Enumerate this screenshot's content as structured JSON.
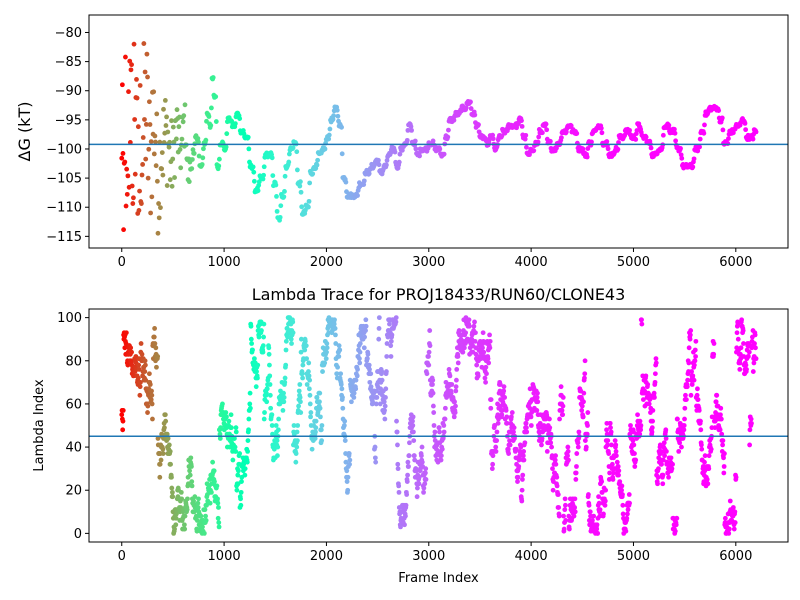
{
  "colors": {
    "hline": "#1f77b4",
    "axes": "#000000",
    "colormap": "rainbow_r"
  },
  "chart_data": [
    {
      "type": "scatter",
      "title": "",
      "xlabel": "",
      "ylabel": "ΔG (kT)",
      "xlim": [
        -320,
        6510
      ],
      "ylim": [
        -117,
        -77
      ],
      "xticks": [
        0,
        1000,
        2000,
        3000,
        4000,
        5000,
        6000
      ],
      "xtick_labels": [
        "0",
        "1000",
        "2000",
        "3000",
        "4000",
        "5000",
        "6000"
      ],
      "yticks": [
        -80,
        -85,
        -90,
        -95,
        -100,
        -105,
        -110,
        -115
      ],
      "ytick_labels": [
        "−80",
        "−85",
        "−90",
        "−95",
        "−100",
        "−105",
        "−110",
        "−115"
      ],
      "hline": -99.2,
      "color_encoding": "frame index (rainbow, early=red, late=violet)",
      "trace_points": [
        [
          0,
          -90
        ],
        [
          20,
          -100
        ],
        [
          40,
          -80
        ],
        [
          60,
          -86
        ],
        [
          90,
          -97
        ],
        [
          120,
          -104
        ],
        [
          150,
          -108
        ],
        [
          180,
          -99
        ],
        [
          220,
          -94
        ],
        [
          260,
          -101
        ],
        [
          300,
          -95
        ],
        [
          340,
          -104
        ],
        [
          380,
          -99
        ],
        [
          420,
          -98
        ],
        [
          470,
          -102
        ],
        [
          520,
          -97
        ],
        [
          560,
          -100
        ],
        [
          600,
          -96
        ],
        [
          640,
          -104
        ],
        [
          680,
          -101
        ],
        [
          720,
          -98
        ],
        [
          760,
          -103
        ],
        [
          800,
          -99
        ],
        [
          830,
          -94
        ],
        [
          860,
          -96
        ],
        [
          880,
          -88
        ],
        [
          900,
          -91
        ],
        [
          930,
          -103
        ],
        [
          960,
          -99
        ],
        [
          1000,
          -100
        ],
        [
          1030,
          -95
        ],
        [
          1080,
          -96
        ],
        [
          1120,
          -94
        ],
        [
          1160,
          -97
        ],
        [
          1200,
          -98
        ],
        [
          1250,
          -103
        ],
        [
          1300,
          -107
        ],
        [
          1350,
          -105
        ],
        [
          1400,
          -101
        ],
        [
          1440,
          -101
        ],
        [
          1480,
          -106
        ],
        [
          1520,
          -112
        ],
        [
          1560,
          -108
        ],
        [
          1600,
          -103
        ],
        [
          1640,
          -100
        ],
        [
          1680,
          -99
        ],
        [
          1720,
          -106
        ],
        [
          1760,
          -111
        ],
        [
          1800,
          -110
        ],
        [
          1840,
          -104
        ],
        [
          1880,
          -103
        ],
        [
          1920,
          -101
        ],
        [
          1960,
          -100
        ],
        [
          2000,
          -98
        ],
        [
          2040,
          -95
        ],
        [
          2080,
          -93
        ],
        [
          2120,
          -96
        ],
        [
          2160,
          -105
        ],
        [
          2200,
          -108
        ],
        [
          2260,
          -108
        ],
        [
          2320,
          -106
        ],
        [
          2380,
          -104
        ],
        [
          2440,
          -103
        ],
        [
          2480,
          -102
        ],
        [
          2520,
          -104
        ],
        [
          2560,
          -103
        ],
        [
          2600,
          -101
        ],
        [
          2640,
          -100
        ],
        [
          2680,
          -103
        ],
        [
          2720,
          -100
        ],
        [
          2760,
          -99
        ],
        [
          2800,
          -96
        ],
        [
          2840,
          -99
        ],
        [
          2880,
          -101
        ],
        [
          2920,
          -100
        ],
        [
          2960,
          -100
        ],
        [
          3000,
          -99
        ],
        [
          3060,
          -100
        ],
        [
          3120,
          -101
        ],
        [
          3160,
          -98
        ],
        [
          3200,
          -95
        ],
        [
          3260,
          -94
        ],
        [
          3320,
          -93
        ],
        [
          3380,
          -92
        ],
        [
          3420,
          -94
        ],
        [
          3460,
          -96
        ],
        [
          3500,
          -98
        ],
        [
          3560,
          -99
        ],
        [
          3600,
          -98
        ],
        [
          3640,
          -100
        ],
        [
          3680,
          -98
        ],
        [
          3720,
          -97
        ],
        [
          3780,
          -96
        ],
        [
          3840,
          -96
        ],
        [
          3880,
          -95
        ],
        [
          3920,
          -98
        ],
        [
          3960,
          -101
        ],
        [
          4000,
          -100
        ],
        [
          4040,
          -99
        ],
        [
          4080,
          -97
        ],
        [
          4120,
          -96
        ],
        [
          4160,
          -99
        ],
        [
          4200,
          -100
        ],
        [
          4260,
          -99
        ],
        [
          4300,
          -97
        ],
        [
          4360,
          -96
        ],
        [
          4400,
          -97
        ],
        [
          4460,
          -100
        ],
        [
          4520,
          -101
        ],
        [
          4560,
          -99
        ],
        [
          4600,
          -97
        ],
        [
          4650,
          -96
        ],
        [
          4700,
          -99
        ],
        [
          4760,
          -101
        ],
        [
          4820,
          -100
        ],
        [
          4860,
          -98
        ],
        [
          4920,
          -97
        ],
        [
          4980,
          -98
        ],
        [
          5040,
          -96
        ],
        [
          5080,
          -98
        ],
        [
          5140,
          -99
        ],
        [
          5180,
          -101
        ],
        [
          5240,
          -100
        ],
        [
          5300,
          -96
        ],
        [
          5360,
          -97
        ],
        [
          5420,
          -100
        ],
        [
          5480,
          -103
        ],
        [
          5540,
          -103
        ],
        [
          5600,
          -100
        ],
        [
          5660,
          -97
        ],
        [
          5700,
          -94
        ],
        [
          5740,
          -93
        ],
        [
          5800,
          -93
        ],
        [
          5840,
          -95
        ],
        [
          5880,
          -99
        ],
        [
          5940,
          -97
        ],
        [
          6000,
          -96
        ],
        [
          6060,
          -95
        ],
        [
          6100,
          -98
        ],
        [
          6140,
          -98
        ],
        [
          6180,
          -97
        ]
      ]
    },
    {
      "type": "scatter",
      "title": "Lambda Trace for PROJ18433/RUN60/CLONE43",
      "xlabel": "Frame Index",
      "ylabel": "Lambda Index",
      "xlim": [
        -320,
        6510
      ],
      "ylim": [
        -4,
        104
      ],
      "xticks": [
        0,
        1000,
        2000,
        3000,
        4000,
        5000,
        6000
      ],
      "xtick_labels": [
        "0",
        "1000",
        "2000",
        "3000",
        "4000",
        "5000",
        "6000"
      ],
      "yticks": [
        0,
        20,
        40,
        60,
        80,
        100
      ],
      "ytick_labels": [
        "0",
        "20",
        "40",
        "60",
        "80",
        "100"
      ],
      "hline": 45,
      "color_encoding": "frame index (rainbow, early=red, late=violet)",
      "n_frames": 6200,
      "lambda_range": [
        0,
        100
      ]
    }
  ]
}
